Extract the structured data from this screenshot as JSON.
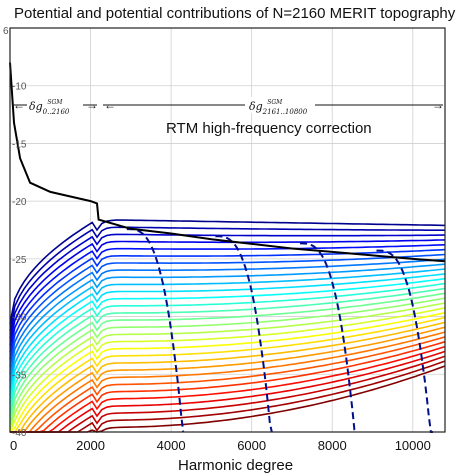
{
  "chart_data": {
    "type": "line",
    "title": "Potential and potential contributions of N=2160 MERIT topography",
    "xlabel": "Harmonic degree",
    "ylabel": "",
    "xlim": [
      0,
      10800
    ],
    "ylim": [
      -40,
      -5
    ],
    "x_ticks": [
      "0",
      "2000",
      "4000",
      "6000",
      "8000",
      "10000"
    ],
    "x_tick_values": [
      0,
      2000,
      4000,
      6000,
      8000,
      10000
    ],
    "y_ticks": [
      "-10",
      "-15",
      "-20",
      "-25",
      "-30",
      "-35",
      "-40"
    ],
    "y_tick_values": [
      -10,
      -15,
      -20,
      -25,
      -30,
      -35,
      -40
    ],
    "y_axis_power_label": "6",
    "grid": true,
    "annotation": "RTM high-frequency correction",
    "brackets": [
      {
        "symbol": "δg",
        "superscript": "SGM",
        "subscript": "0..2160",
        "from": 0,
        "to": 2160
      },
      {
        "symbol": "δg",
        "superscript": "SGM",
        "subscript": "2161..10800",
        "from": 2160,
        "to": 10800
      }
    ],
    "black_series": [
      {
        "x": [
          0,
          100,
          250,
          500,
          1000,
          1500,
          2000,
          2160,
          2200,
          3000,
          4000,
          5000,
          6000,
          7000,
          8000,
          9000,
          10000,
          10800
        ],
        "y": [
          -8.0,
          -13.2,
          -16.3,
          -18.4,
          -19.2,
          -19.6,
          -20.0,
          -20.2,
          -21.6,
          -22.4,
          -22.8,
          -23.3,
          -23.7,
          -24.1,
          -24.4,
          -24.7,
          -25.0,
          -25.2
        ]
      }
    ],
    "blue_dashed_endpoints": [
      4300,
      6500,
      8600,
      10500
    ],
    "contribution_curves": {
      "count": 30,
      "colormap": [
        "#00008f",
        "#0000ff",
        "#0080ff",
        "#00ffff",
        "#80ff80",
        "#ffff00",
        "#ff8000",
        "#ff0000",
        "#800000"
      ],
      "first_level": -21.6,
      "level_step": 0.62
    }
  }
}
